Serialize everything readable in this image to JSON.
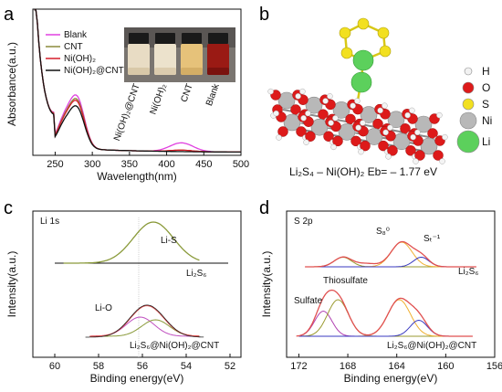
{
  "panels": {
    "a": "a",
    "b": "b",
    "c": "c",
    "d": "d"
  },
  "colors": {
    "blank": "#e040e0",
    "cnt": "#8a8a3a",
    "nioh": "#d61e2a",
    "niohcnt": "#111111",
    "s_8": "#f0b030",
    "s_t": "#3a3ac0",
    "sulfate_fit": "#b040b0",
    "thio_fit": "#9a9a30",
    "li_o_fit": "#c050c0",
    "li_s_fit": "#8a9a3a",
    "envelope": "#e05050"
  },
  "chart_data": [
    {
      "panel": "a",
      "type": "line",
      "xlabel": "Wavelength(nm)",
      "ylabel": "Absorbance(a.u.)",
      "xlim": [
        220,
        500
      ],
      "xticks": [
        "250",
        "300",
        "350",
        "400",
        "450",
        "500"
      ],
      "legend_placement": "top-left",
      "legend": [
        "Blank",
        "CNT",
        "Ni(OH)₂",
        "Ni(OH)₂@CNT"
      ],
      "photo_labels": [
        "Ni(OH)₂@CNT",
        "Ni(OH)₂",
        "CNT",
        "Blank"
      ],
      "series": [
        {
          "name": "Blank",
          "peaks": [
            {
              "x": 280,
              "y": 0.59
            },
            {
              "x": 420,
              "y": 0.06
            }
          ]
        },
        {
          "name": "CNT",
          "peaks": [
            {
              "x": 280,
              "y": 0.55
            }
          ]
        },
        {
          "name": "Ni(OH)₂",
          "peaks": [
            {
              "x": 280,
              "y": 0.53
            }
          ]
        },
        {
          "name": "Ni(OH)₂@CNT",
          "peaks": [
            {
              "x": 280,
              "y": 0.47
            }
          ]
        }
      ]
    },
    {
      "panel": "c",
      "type": "line",
      "title": "Li 1s",
      "xlabel": "Binding energy(eV)",
      "ylabel": "Intensity(a.u.)",
      "xlim": [
        61,
        51.5
      ],
      "xticks": [
        "60",
        "58",
        "56",
        "54",
        "52"
      ],
      "annotations": [
        "Li-S",
        "Li-O"
      ],
      "series": [
        {
          "name": "Li₂S₆",
          "peak_ev": 55.5
        },
        {
          "name": "Li₂S₆@Ni(OH)₂@CNT",
          "components": [
            {
              "label": "Li-O",
              "peak_ev": 56.1
            },
            {
              "label": "Li-S",
              "peak_ev": 55.4
            }
          ]
        }
      ]
    },
    {
      "panel": "d",
      "type": "line",
      "title": "S 2p",
      "xlabel": "Binding energy(eV)",
      "ylabel": "Intensity(a.u.)",
      "xlim": [
        173,
        156
      ],
      "xticks": [
        "172",
        "168",
        "164",
        "160",
        "156"
      ],
      "annotations": [
        "S₈⁰",
        "Sₜ⁻¹",
        "Thiosulfate",
        "Sulfate"
      ],
      "series": [
        {
          "name": "Li₂S₆",
          "peaks_ev": [
            168.4,
            163.6,
            162.0
          ]
        },
        {
          "name": "Li₂S₆@Ni(OH)₂@CNT",
          "peaks_ev": [
            170.0,
            168.8,
            163.8,
            162.2
          ]
        }
      ]
    }
  ],
  "panel_b": {
    "caption": "Li₂S₄ – Ni(OH)₂ Eb= – 1.77 eV",
    "legend": [
      {
        "label": "H",
        "color": "#f2f2f2"
      },
      {
        "label": "O",
        "color": "#dd1a1a"
      },
      {
        "label": "S",
        "color": "#f2e020"
      },
      {
        "label": "Ni",
        "color": "#b8b8b8"
      },
      {
        "label": "Li",
        "color": "#5cd05c"
      }
    ]
  },
  "text": {
    "a_leg_blank": "Blank",
    "a_leg_cnt": "CNT",
    "a_leg_nioh": "Ni(OH)₂",
    "a_leg_niohcnt": "Ni(OH)₂@CNT",
    "a_photo_1": "Ni(OH)₂@CNT",
    "a_photo_2": "Ni(OH)₂",
    "a_photo_3": "CNT",
    "a_photo_4": "Blank",
    "c_li_s": "Li-S",
    "c_li_o": "Li-O",
    "c_series_top": "Li₂S₆",
    "c_series_bottom": "Li₂S₆@Ni(OH)₂@CNT",
    "d_s8": "S₈⁰",
    "d_st": "Sₜ⁻¹",
    "d_thio": "Thiosulfate",
    "d_sulfate": "Sulfate",
    "d_series_top": "Li₂S₆",
    "d_series_bottom": "Li₂S₆@Ni(OH)₂@CNT"
  }
}
